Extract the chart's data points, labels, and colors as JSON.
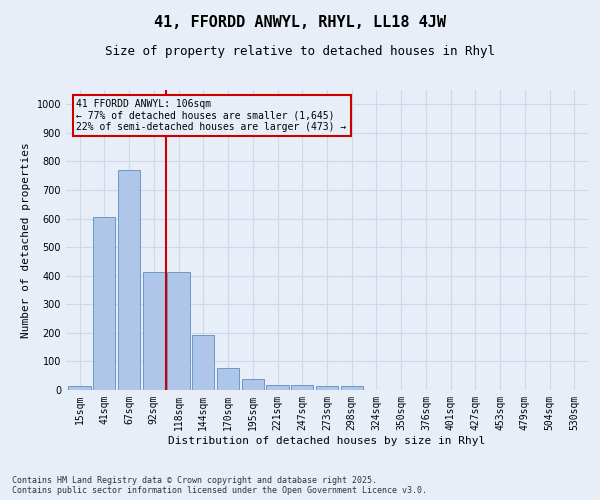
{
  "title": "41, FFORDD ANWYL, RHYL, LL18 4JW",
  "subtitle": "Size of property relative to detached houses in Rhyl",
  "xlabel": "Distribution of detached houses by size in Rhyl",
  "ylabel": "Number of detached properties",
  "categories": [
    "15sqm",
    "41sqm",
    "67sqm",
    "92sqm",
    "118sqm",
    "144sqm",
    "170sqm",
    "195sqm",
    "221sqm",
    "247sqm",
    "273sqm",
    "298sqm",
    "324sqm",
    "350sqm",
    "376sqm",
    "401sqm",
    "427sqm",
    "453sqm",
    "479sqm",
    "504sqm",
    "530sqm"
  ],
  "values": [
    15,
    605,
    770,
    413,
    413,
    192,
    76,
    40,
    19,
    19,
    14,
    14,
    0,
    0,
    0,
    0,
    0,
    0,
    0,
    0,
    0
  ],
  "bar_color": "#aec6e8",
  "bar_edge_color": "#5a8fc2",
  "grid_color": "#d0d8e8",
  "background_color": "#e8eef8",
  "vline_x": 3.5,
  "vline_color": "#cc0000",
  "annotation_text": "41 FFORDD ANWYL: 106sqm\n← 77% of detached houses are smaller (1,645)\n22% of semi-detached houses are larger (473) →",
  "annotation_box_color": "#cc0000",
  "footer_text": "Contains HM Land Registry data © Crown copyright and database right 2025.\nContains public sector information licensed under the Open Government Licence v3.0.",
  "ylim": [
    0,
    1050
  ],
  "yticks": [
    0,
    100,
    200,
    300,
    400,
    500,
    600,
    700,
    800,
    900,
    1000
  ],
  "title_fontsize": 11,
  "subtitle_fontsize": 9,
  "label_fontsize": 8,
  "tick_fontsize": 7,
  "footer_fontsize": 6,
  "annotation_fontsize": 7
}
